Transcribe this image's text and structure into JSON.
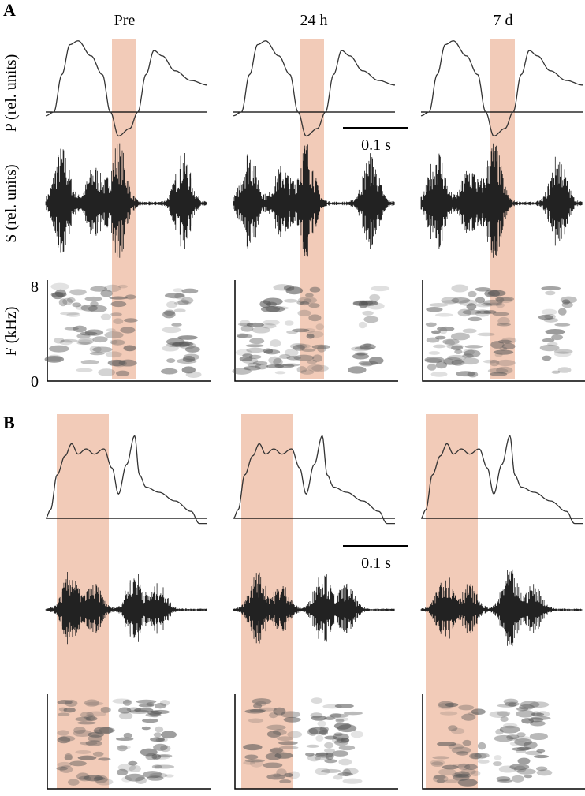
{
  "panels": [
    {
      "label": "A",
      "columns": [
        "Pre",
        "24 h",
        "7 d"
      ],
      "scale_bar": "0.1 s",
      "y_labels": {
        "pressure": "P (rel. units)",
        "sound": "S (rel. units)",
        "frequency": "F (kHz)"
      },
      "freq_ticks": [
        "8",
        "0"
      ]
    },
    {
      "label": "B",
      "scale_bar": "0.1 s"
    }
  ]
}
